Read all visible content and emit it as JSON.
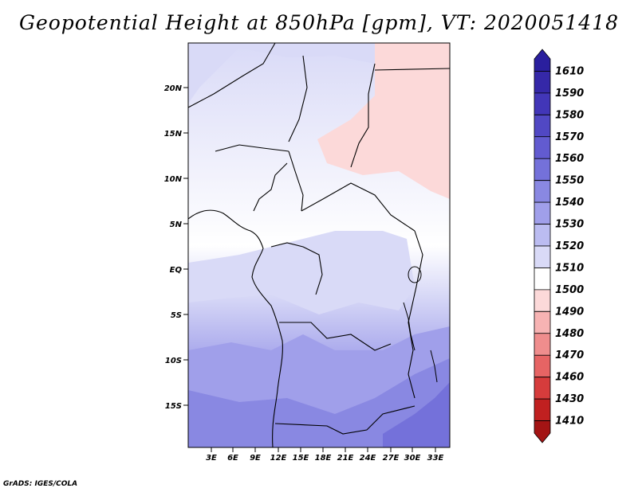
{
  "title": "Geopotential Height at 850hPa [gpm], VT: 2020051418",
  "credit": "GrADS: IGES/COLA",
  "map": {
    "lat_ticks": [
      "20N",
      "15N",
      "10N",
      "5N",
      "EQ",
      "5S",
      "10S",
      "15S"
    ],
    "lon_ticks": [
      "3E",
      "6E",
      "9E",
      "12E",
      "15E",
      "18E",
      "21E",
      "24E",
      "27E",
      "30E",
      "33E"
    ]
  },
  "colorbar": {
    "levels": [
      "1610",
      "1590",
      "1580",
      "1570",
      "1560",
      "1550",
      "1540",
      "1530",
      "1520",
      "1510",
      "1500",
      "1490",
      "1480",
      "1470",
      "1460",
      "1430",
      "1410"
    ],
    "colors": [
      "#2a1f9e",
      "#3528a8",
      "#4236b8",
      "#5148c4",
      "#625bd0",
      "#7471da",
      "#8988e2",
      "#a09fea",
      "#bbbcf1",
      "#d9daf7",
      "#ffffff",
      "#fcd9d9",
      "#f7b3b3",
      "#ef8d8d",
      "#e66464",
      "#d63c3c",
      "#c02020",
      "#a31414"
    ]
  }
}
